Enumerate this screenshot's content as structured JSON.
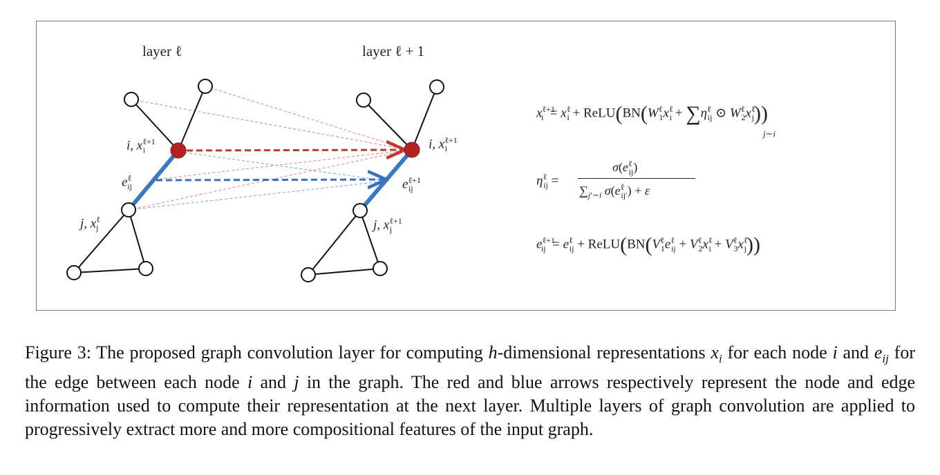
{
  "diagram": {
    "label_layer_l": "layer ℓ",
    "label_layer_l1": "layer ℓ + 1",
    "node_i_left": "i, x",
    "node_i_left_sup": "ℓ+1",
    "node_i_left_sub": "i",
    "edge_left": "e",
    "edge_left_sup": "ℓ",
    "edge_left_sub": "ij",
    "node_j_left": "j, x",
    "node_j_left_sup": "ℓ",
    "node_j_left_sub": "j",
    "node_i_right": "i, x",
    "node_i_right_sup": "ℓ+1",
    "node_i_right_sub": "i",
    "edge_right": "e",
    "edge_right_sup": "ℓ+1",
    "edge_right_sub": "ij",
    "node_j_right": "j, x",
    "node_j_right_sup": "ℓ+1",
    "node_j_right_sub": "j",
    "colors": {
      "node_red": "#b22222",
      "edge_blue": "#3a78c2",
      "arrow_red": "#c0392b",
      "arrow_blue": "#3a6fbf"
    }
  },
  "equations": {
    "eq1": "x_i^{ℓ+1} = x_i^ℓ + ReLU(BN(W_1^ℓ x_i^ℓ + Σ_{j∼i} η_ij^ℓ ⊙ W_2^ℓ x_j^ℓ))",
    "eq2": "η_ij^ℓ = σ(e_ij^ℓ) / (Σ_{j′∼i} σ(e_ij′^ℓ) + ε)",
    "eq3": "e_ij^{ℓ+1} = e_ij^ℓ + ReLU(BN(V_1^ℓ e_ij^ℓ + V_2^ℓ x_i^ℓ + V_3^ℓ x_j^ℓ))"
  },
  "caption": {
    "p1": "Figure 3: The proposed graph convolution layer for computing ",
    "v1": "h",
    "p2": "-dimensional representations ",
    "v2": "x",
    "v2sub": "i",
    "p3": " for each node ",
    "v3": "i",
    "p4": " and ",
    "v4": "e",
    "v4sub": "ij",
    "p5": " for the edge between each node ",
    "v5": "i",
    "p6": " and ",
    "v6": "j",
    "p7": " in the graph. The red and blue arrows respectively represent the node and edge information used to compute their representation at the next layer. Multiple layers of graph convolution are applied to progressively extract more and more compositional features of the input graph."
  }
}
